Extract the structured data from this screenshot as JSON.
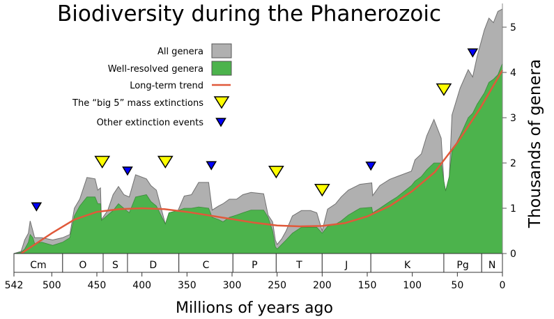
{
  "chart_data": {
    "type": "area",
    "title": "Biodiversity during the Phanerozoic",
    "xlabel": "Millions of years ago",
    "ylabel": "Thousands of genera",
    "xlim": [
      542,
      0
    ],
    "ylim": [
      0,
      5.5
    ],
    "x_ticks": [
      542,
      500,
      450,
      400,
      350,
      300,
      250,
      200,
      150,
      100,
      50,
      0
    ],
    "y_ticks": [
      0,
      1,
      2,
      3,
      4,
      5
    ],
    "legend": {
      "placement": "top-center",
      "items": [
        {
          "label": "All genera",
          "kind": "swatch",
          "color": "#b0b0b0"
        },
        {
          "label": "Well-resolved genera",
          "kind": "swatch",
          "color": "#4cb34c"
        },
        {
          "label": "Long-term trend",
          "kind": "line",
          "color": "#e0593a"
        },
        {
          "label": "The “big 5” mass extinctions",
          "kind": "big-triangle",
          "color": "#ffff00"
        },
        {
          "label": "Other extinction events",
          "kind": "small-triangle",
          "color": "#0000ff"
        }
      ]
    },
    "periods": [
      {
        "label": "Cm",
        "start": 542,
        "end": 488
      },
      {
        "label": "O",
        "start": 488,
        "end": 443
      },
      {
        "label": "S",
        "start": 443,
        "end": 416
      },
      {
        "label": "D",
        "start": 416,
        "end": 359
      },
      {
        "label": "C",
        "start": 359,
        "end": 299
      },
      {
        "label": "P",
        "start": 299,
        "end": 251
      },
      {
        "label": "T",
        "start": 251,
        "end": 200
      },
      {
        "label": "J",
        "start": 200,
        "end": 146
      },
      {
        "label": "K",
        "start": 146,
        "end": 65
      },
      {
        "label": "Pg",
        "start": 65,
        "end": 23
      },
      {
        "label": "N",
        "start": 23,
        "end": 0
      }
    ],
    "series_points_columns": [
      "mya",
      "all_genera",
      "well_resolved_genera"
    ],
    "series_points": [
      [
        542,
        0,
        0
      ],
      [
        534,
        0.05,
        0.03
      ],
      [
        530,
        0.3,
        0.1
      ],
      [
        526,
        0.45,
        0.25
      ],
      [
        524,
        0.72,
        0.42
      ],
      [
        521,
        0.5,
        0.35
      ],
      [
        519,
        0.35,
        0.22
      ],
      [
        511,
        0.35,
        0.25
      ],
      [
        499,
        0.3,
        0.18
      ],
      [
        488,
        0.35,
        0.25
      ],
      [
        480,
        0.42,
        0.35
      ],
      [
        475,
        1.0,
        0.83
      ],
      [
        469,
        1.2,
        1.05
      ],
      [
        461,
        1.68,
        1.25
      ],
      [
        452,
        1.65,
        1.25
      ],
      [
        449,
        1.4,
        1.1
      ],
      [
        446,
        1.45,
        1.1
      ],
      [
        445,
        0.75,
        0.73
      ],
      [
        438,
        0.95,
        0.85
      ],
      [
        432,
        1.3,
        0.95
      ],
      [
        426,
        1.48,
        1.1
      ],
      [
        420,
        1.3,
        1.0
      ],
      [
        414,
        1.25,
        0.9
      ],
      [
        407,
        1.74,
        1.25
      ],
      [
        395,
        1.65,
        1.3
      ],
      [
        390,
        1.5,
        1.15
      ],
      [
        384,
        1.4,
        1.05
      ],
      [
        374,
        0.65,
        0.65
      ],
      [
        370,
        0.9,
        0.9
      ],
      [
        360,
        0.95,
        0.95
      ],
      [
        353,
        1.27,
        1.0
      ],
      [
        345,
        1.3,
        1.0
      ],
      [
        337,
        1.57,
        1.03
      ],
      [
        326,
        1.57,
        1.0
      ],
      [
        322,
        0.96,
        0.8
      ],
      [
        315,
        1.05,
        0.75
      ],
      [
        310,
        1.1,
        0.7
      ],
      [
        303,
        1.2,
        0.8
      ],
      [
        295,
        1.2,
        0.85
      ],
      [
        288,
        1.3,
        0.9
      ],
      [
        279,
        1.35,
        0.96
      ],
      [
        265,
        1.32,
        0.96
      ],
      [
        260,
        0.85,
        0.8
      ],
      [
        255,
        0.7,
        0.5
      ],
      [
        252,
        0.3,
        0.15
      ],
      [
        250,
        0.2,
        0.1
      ],
      [
        245,
        0.32,
        0.2
      ],
      [
        240,
        0.5,
        0.3
      ],
      [
        233,
        0.83,
        0.45
      ],
      [
        223,
        0.95,
        0.58
      ],
      [
        213,
        0.95,
        0.58
      ],
      [
        206,
        0.9,
        0.58
      ],
      [
        200,
        0.5,
        0.45
      ],
      [
        194,
        0.98,
        0.6
      ],
      [
        185,
        1.1,
        0.65
      ],
      [
        179,
        1.25,
        0.72
      ],
      [
        171,
        1.4,
        0.85
      ],
      [
        158,
        1.53,
        1.0
      ],
      [
        145,
        1.56,
        1.02
      ],
      [
        144,
        1.28,
        0.9
      ],
      [
        136,
        1.5,
        1.0
      ],
      [
        125,
        1.64,
        1.15
      ],
      [
        117,
        1.7,
        1.25
      ],
      [
        101,
        1.82,
        1.5
      ],
      [
        97,
        2.07,
        1.6
      ],
      [
        90,
        2.2,
        1.7
      ],
      [
        84,
        2.6,
        1.85
      ],
      [
        76,
        2.96,
        2.0
      ],
      [
        68,
        2.55,
        2.0
      ],
      [
        65,
        1.6,
        1.6
      ],
      [
        63,
        1.38,
        1.38
      ],
      [
        59,
        1.7,
        1.7
      ],
      [
        56,
        3.06,
        2.25
      ],
      [
        47,
        3.65,
        2.6
      ],
      [
        38,
        4.06,
        3.0
      ],
      [
        33,
        3.9,
        3.1
      ],
      [
        28,
        4.36,
        3.3
      ],
      [
        20,
        4.94,
        3.55
      ],
      [
        15,
        5.2,
        3.78
      ],
      [
        10,
        5.1,
        3.85
      ],
      [
        5,
        5.35,
        3.95
      ],
      [
        0,
        5.4,
        4.2
      ]
    ],
    "trend": [
      [
        534,
        0
      ],
      [
        500,
        0.45
      ],
      [
        475,
        0.75
      ],
      [
        450,
        0.92
      ],
      [
        425,
        0.98
      ],
      [
        400,
        1.0
      ],
      [
        375,
        0.98
      ],
      [
        350,
        0.92
      ],
      [
        325,
        0.84
      ],
      [
        300,
        0.76
      ],
      [
        275,
        0.68
      ],
      [
        250,
        0.62
      ],
      [
        225,
        0.6
      ],
      [
        200,
        0.61
      ],
      [
        175,
        0.67
      ],
      [
        150,
        0.82
      ],
      [
        125,
        1.05
      ],
      [
        100,
        1.38
      ],
      [
        75,
        1.8
      ],
      [
        50,
        2.45
      ],
      [
        25,
        3.2
      ],
      [
        0,
        4.05
      ]
    ],
    "big5_extinctions": [
      [
        444,
        1.9
      ],
      [
        374,
        1.9
      ],
      [
        251,
        1.68
      ],
      [
        200,
        1.28
      ],
      [
        65,
        3.5
      ]
    ],
    "other_extinctions": [
      [
        517,
        0.95
      ],
      [
        416,
        1.74
      ],
      [
        323,
        1.86
      ],
      [
        146,
        1.85
      ],
      [
        33,
        4.35
      ]
    ],
    "colors": {
      "all": "#b0b0b0",
      "resolved": "#4cb34c",
      "trend": "#e0593a",
      "big5": "#ffff00",
      "other": "#0000ff",
      "outline": "#707070"
    }
  }
}
